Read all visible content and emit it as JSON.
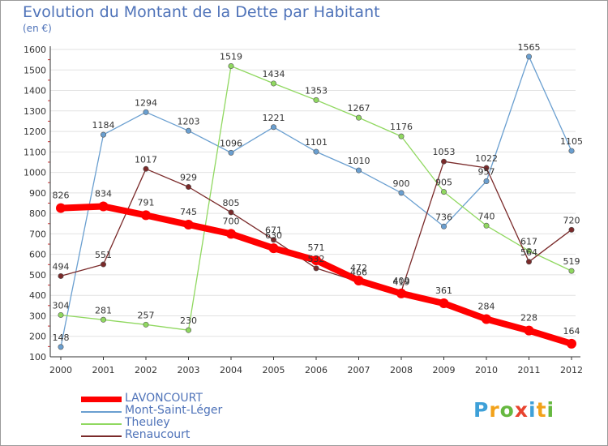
{
  "chart_data": {
    "type": "line",
    "title": "Evolution du Montant de la Dette par Habitant",
    "subtitle": "(en €)",
    "x": [
      "2000",
      "2001",
      "2002",
      "2003",
      "2004",
      "2005",
      "2006",
      "2007",
      "2008",
      "2009",
      "2010",
      "2011",
      "2012"
    ],
    "ylim": [
      100,
      1600
    ],
    "yticks": [
      100,
      200,
      300,
      400,
      500,
      600,
      700,
      800,
      900,
      1000,
      1100,
      1200,
      1300,
      1400,
      1500,
      1600
    ],
    "grid": "horizontal",
    "legend_position": "bottom-left",
    "series": [
      {
        "name": "LAVONCOURT",
        "color": "#ff0000",
        "values": [
          826,
          834,
          791,
          745,
          700,
          630,
          571,
          472,
          409,
          361,
          284,
          228,
          164
        ]
      },
      {
        "name": "Mont-Saint-Léger",
        "color": "#6a9fd0",
        "values": [
          148,
          1184,
          1294,
          1203,
          1096,
          1221,
          1101,
          1010,
          900,
          736,
          957,
          1565,
          1105
        ]
      },
      {
        "name": "Theuley",
        "color": "#90d860",
        "values": [
          304,
          281,
          257,
          230,
          1519,
          1434,
          1353,
          1267,
          1176,
          905,
          740,
          617,
          519
        ]
      },
      {
        "name": "Renaucourt",
        "color": "#7a2a2a",
        "values": [
          494,
          551,
          1017,
          929,
          805,
          671,
          532,
          466,
          419,
          1053,
          1022,
          564,
          720
        ]
      }
    ]
  },
  "logo": {
    "letters": [
      "P",
      "r",
      "o",
      "x",
      "i",
      "t",
      "i"
    ],
    "colors": [
      "#3ea0d8",
      "#f2a21a",
      "#66b840",
      "#e8432e",
      "#3ea0d8",
      "#f2a21a",
      "#66b840"
    ]
  }
}
